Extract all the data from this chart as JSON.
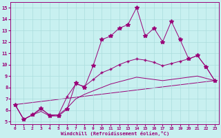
{
  "xlabel": "Windchill (Refroidissement éolien,°C)",
  "xlim": [
    -0.5,
    23.5
  ],
  "ylim": [
    4.8,
    15.5
  ],
  "xticks": [
    0,
    1,
    2,
    3,
    4,
    5,
    6,
    7,
    8,
    9,
    10,
    11,
    12,
    13,
    14,
    15,
    16,
    17,
    18,
    19,
    20,
    21,
    22,
    23
  ],
  "yticks": [
    5,
    6,
    7,
    8,
    9,
    10,
    11,
    12,
    13,
    14,
    15
  ],
  "bg_color": "#c8f0f0",
  "line_color": "#990077",
  "grid_color": "#aadddd",
  "jagged_x": [
    0,
    1,
    2,
    3,
    4,
    5,
    6,
    7,
    8,
    9,
    10,
    11,
    12,
    13,
    14,
    15,
    16,
    17,
    18,
    19,
    20,
    21,
    22,
    23
  ],
  "jagged_y": [
    6.5,
    5.2,
    5.6,
    6.2,
    5.5,
    5.5,
    6.1,
    8.4,
    8.0,
    9.9,
    12.2,
    12.5,
    13.2,
    13.5,
    15.0,
    12.5,
    13.2,
    12.0,
    13.8,
    12.2,
    10.5,
    10.8,
    9.8,
    8.6
  ],
  "curved1_x": [
    0,
    1,
    2,
    3,
    4,
    5,
    6,
    7,
    8,
    9,
    10,
    11,
    12,
    13,
    14,
    15,
    16,
    17,
    18,
    19,
    20,
    21,
    22,
    23
  ],
  "curved1_y": [
    6.5,
    5.2,
    5.6,
    6.1,
    5.6,
    5.6,
    7.2,
    8.3,
    8.1,
    8.7,
    9.3,
    9.6,
    10.0,
    10.3,
    10.5,
    10.4,
    10.2,
    9.9,
    10.1,
    10.3,
    10.5,
    10.8,
    9.8,
    8.6
  ],
  "curved2_x": [
    0,
    1,
    2,
    3,
    4,
    5,
    6,
    7,
    8,
    9,
    10,
    11,
    12,
    13,
    14,
    15,
    16,
    17,
    18,
    19,
    20,
    21,
    22,
    23
  ],
  "curved2_y": [
    6.5,
    5.2,
    5.6,
    5.9,
    5.5,
    5.6,
    6.2,
    7.0,
    7.4,
    7.7,
    8.0,
    8.3,
    8.5,
    8.7,
    8.9,
    8.8,
    8.7,
    8.6,
    8.7,
    8.8,
    8.9,
    9.0,
    8.8,
    8.6
  ],
  "line_x": [
    0,
    23
  ],
  "line_y": [
    6.5,
    8.6
  ]
}
